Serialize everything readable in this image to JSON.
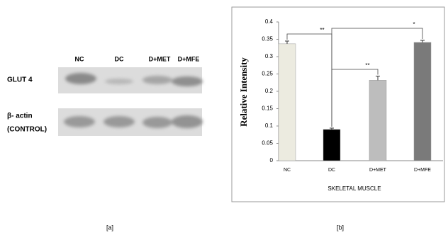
{
  "blot": {
    "lanes": [
      "NC",
      "DC",
      "D+MET",
      "D+MFE"
    ],
    "rows": [
      [
        "GLUT 4"
      ],
      [
        "β- actin",
        "(CONTROL)"
      ]
    ]
  },
  "panel_labels": [
    "[a]",
    "[b]"
  ],
  "chart_data": {
    "type": "bar",
    "y_label": "Relative Intensity",
    "x_label": "SKELETAL MUSCLE",
    "categories": [
      "NC",
      "DC",
      "D+MET",
      "D+MFE"
    ],
    "values": [
      0.337,
      0.09,
      0.232,
      0.341
    ],
    "errors": [
      0.008,
      0.004,
      0.012,
      0.006
    ],
    "colors": [
      "#ecebe0",
      "#000000",
      "#bdbdbd",
      "#7a7a7a"
    ],
    "ylim": [
      0,
      0.4
    ],
    "yticks": [
      0,
      0.05,
      0.1,
      0.15,
      0.2,
      0.25,
      0.3,
      0.35,
      0.4
    ],
    "annotations": [
      "**",
      "*",
      "**"
    ]
  }
}
